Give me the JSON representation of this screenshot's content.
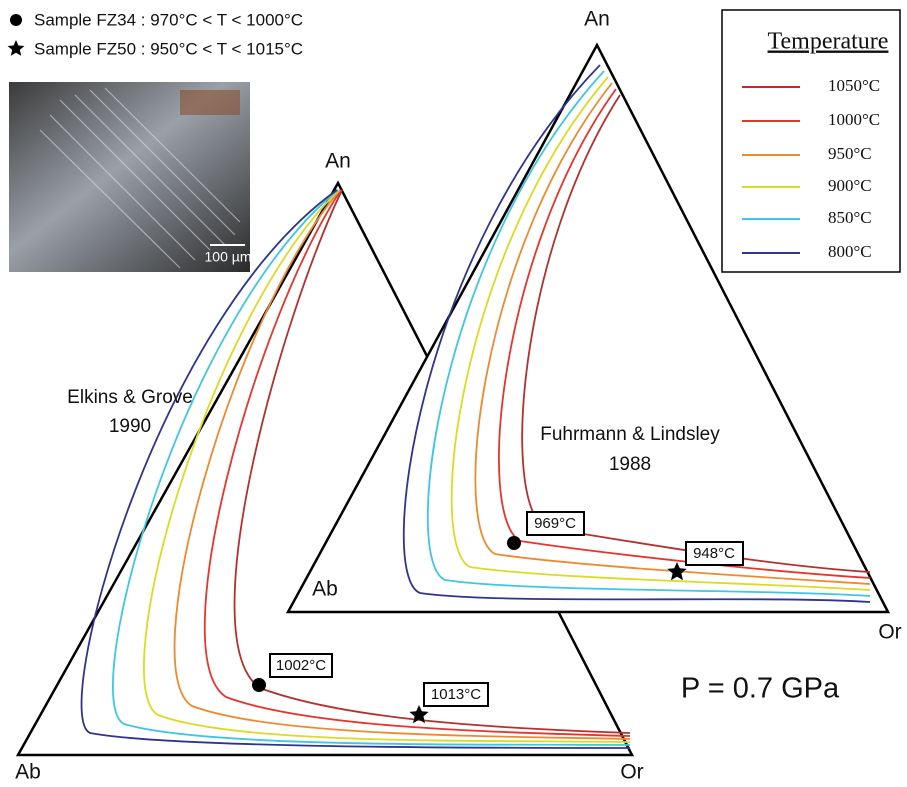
{
  "samples": [
    {
      "marker": "circle",
      "label": "Sample FZ34 : 970°C < T < 1000°C"
    },
    {
      "marker": "star",
      "label": "Sample FZ50 : 950°C < T < 1015°C"
    }
  ],
  "photo": {
    "scale_label": "100 µm"
  },
  "legend": {
    "title": "Temperature",
    "items": [
      {
        "label": "1050°C",
        "color": "#b5302c"
      },
      {
        "label": "1000°C",
        "color": "#e8342c"
      },
      {
        "label": "950°C",
        "color": "#ee8a2e"
      },
      {
        "label": "900°C",
        "color": "#d9dc22"
      },
      {
        "label": "850°C",
        "color": "#3fc6e6"
      },
      {
        "label": "800°C",
        "color": "#2d3590"
      }
    ]
  },
  "left_diagram": {
    "model": [
      "Elkins & Grove",
      "1990"
    ],
    "vertices": {
      "top": "An",
      "left": "Ab",
      "right": "Or"
    },
    "annotations": [
      "1002°C",
      "1013°C"
    ]
  },
  "right_diagram": {
    "model": [
      "Fuhrmann & Lindsley",
      "1988"
    ],
    "vertices": {
      "top": "An",
      "left": "Ab",
      "right": "Or"
    },
    "annotations": [
      "969°C",
      "948°C"
    ]
  },
  "pressure": "P = 0.7 GPa"
}
